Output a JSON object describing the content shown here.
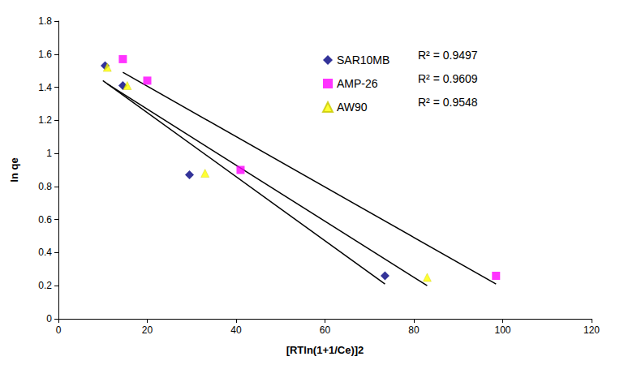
{
  "chart_data": {
    "type": "scatter",
    "x_label": "[RTln(1+1/Ce)]2",
    "y_label": "ln qe",
    "xlim": [
      0,
      120
    ],
    "xticks": [
      0,
      20,
      40,
      60,
      80,
      100,
      120
    ],
    "ylim": [
      0,
      1.8
    ],
    "yticks": [
      0,
      0.2,
      0.4,
      0.6,
      0.8,
      1,
      1.2,
      1.4,
      1.6,
      1.8
    ],
    "grid": false,
    "legend": "top",
    "series": [
      {
        "name": "SAR10MB",
        "color": "#000080",
        "marker": "diamond",
        "x": [
          10.5,
          14.5,
          29.5,
          73.5
        ],
        "values": [
          1.53,
          1.41,
          0.87,
          0.26
        ],
        "annotation": "R² = 0.9497",
        "trendline": {
          "x": [
            10,
            73.5
          ],
          "values": [
            1.44,
            0.21
          ]
        }
      },
      {
        "name": "AMP-26",
        "color": "#FF00FF",
        "marker": "square",
        "x": [
          14.5,
          20,
          41,
          98.5
        ],
        "values": [
          1.57,
          1.44,
          0.9,
          0.26
        ],
        "annotation": "R² = 0.9609",
        "trendline": {
          "x": [
            14.5,
            98.5
          ],
          "values": [
            1.49,
            0.21
          ]
        }
      },
      {
        "name": "AW90",
        "color": "#FFFF00",
        "marker": "triangle",
        "x": [
          11,
          15.5,
          33,
          83
        ],
        "values": [
          1.52,
          1.41,
          0.88,
          0.25
        ],
        "annotation": "R² = 0.9548",
        "trendline": {
          "x": [
            11,
            83
          ],
          "values": [
            1.42,
            0.2
          ]
        }
      }
    ]
  }
}
